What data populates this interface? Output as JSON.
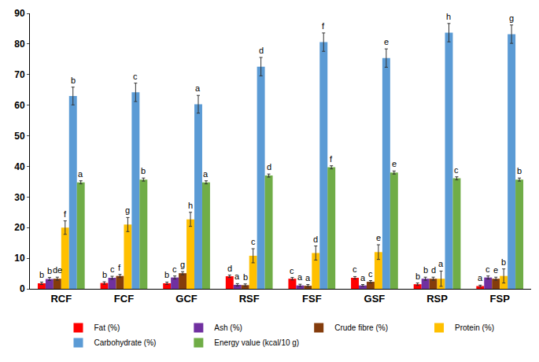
{
  "chart_data": {
    "type": "bar",
    "categories": [
      "RCF",
      "FCF",
      "GCF",
      "RSF",
      "FSF",
      "GSF",
      "RSP",
      "FSP"
    ],
    "series": [
      {
        "name": "Fat (%)",
        "color": "#ff0000",
        "values": [
          1.8,
          1.9,
          1.8,
          4.1,
          3.3,
          3.6,
          1.5,
          0.9
        ],
        "errors": [
          0.4,
          0.4,
          0.4,
          0.4,
          0.4,
          0.4,
          0.4,
          0.3
        ],
        "significance": [
          "b",
          "b",
          "b",
          "d",
          "c",
          "c",
          "b",
          "a"
        ]
      },
      {
        "name": "Ash (%)",
        "color": "#7030a0",
        "values": [
          3.2,
          3.6,
          3.7,
          1.3,
          1.1,
          1.1,
          3.3,
          3.7
        ],
        "errors": [
          0.5,
          0.5,
          0.5,
          0.4,
          0.4,
          0.3,
          0.5,
          0.5
        ],
        "significance": [
          "b",
          "c",
          "c",
          "a",
          "a",
          "a",
          "b",
          "c"
        ]
      },
      {
        "name": "Crude fibre (%)",
        "color": "#843c0c",
        "values": [
          3.3,
          4.2,
          5.1,
          1.2,
          1.0,
          2.3,
          3.3,
          3.3
        ],
        "errors": [
          0.5,
          0.5,
          0.5,
          0.4,
          0.4,
          0.4,
          0.5,
          0.5
        ],
        "significance": [
          "de",
          "f",
          "g",
          "b",
          "a",
          "c",
          "d",
          "e"
        ]
      },
      {
        "name": "Protein (%)",
        "color": "#ffc000",
        "values": [
          20.0,
          21.0,
          22.7,
          10.8,
          11.7,
          12.0,
          3.3,
          4.2
        ],
        "errors": [
          2.2,
          2.3,
          2.3,
          2.3,
          2.3,
          2.4,
          2.5,
          2.3
        ],
        "significance": [
          "f",
          "g",
          "h",
          "c",
          "d",
          "e",
          "a",
          "b"
        ]
      },
      {
        "name": "Carbohydrate (%)",
        "color": "#5b9bd5",
        "values": [
          63.0,
          64.2,
          60.3,
          72.6,
          80.6,
          75.4,
          83.7,
          83.2
        ],
        "errors": [
          2.9,
          3.0,
          2.9,
          3.0,
          3.0,
          3.0,
          3.0,
          3.0
        ],
        "significance": [
          "b",
          "c",
          "a",
          "d",
          "f",
          "e",
          "h",
          "g"
        ]
      },
      {
        "name": "Energy value (kcal/10 g)",
        "color": "#70ad47",
        "values": [
          34.8,
          35.7,
          34.8,
          37.0,
          39.7,
          38.0,
          36.1,
          35.7
        ],
        "errors": [
          0.5,
          0.5,
          0.5,
          0.5,
          0.5,
          0.5,
          0.5,
          0.5
        ],
        "significance": [
          "a",
          "b",
          "a",
          "d",
          "f",
          "e",
          "c",
          "b"
        ]
      }
    ],
    "ylim": [
      0,
      90
    ],
    "yticks": [
      0,
      10,
      20,
      30,
      40,
      50,
      60,
      70,
      80,
      90
    ],
    "grid": false,
    "legend": "bottom"
  }
}
